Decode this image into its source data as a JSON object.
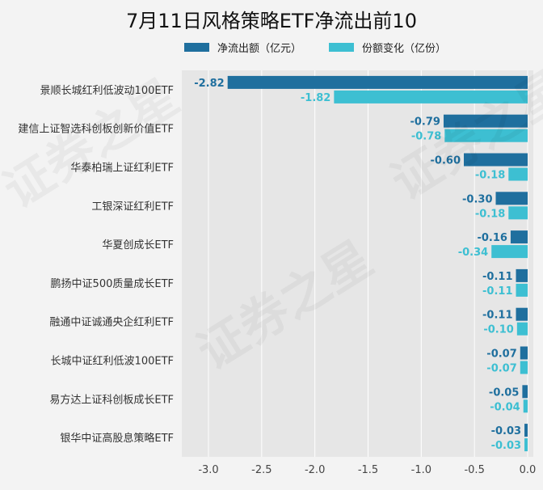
{
  "chart_data": {
    "type": "bar",
    "orientation": "horizontal",
    "title": "7月11日风格策略ETF净流出前10",
    "categories": [
      "景顺长城红利低波动100ETF",
      "建信上证智选科创板创新价值ETF",
      "华泰柏瑞上证红利ETF",
      "工银深证红利ETF",
      "华夏创成长ETF",
      "鹏扬中证500质量成长ETF",
      "融通中证诚通央企红利ETF",
      "长城中证红利低波100ETF",
      "易方达上证科创板成长ETF",
      "银华中证高股息策略ETF"
    ],
    "series": [
      {
        "name": "净流出额（亿元）",
        "color": "#1f6f9e",
        "values": [
          -2.82,
          -0.79,
          -0.6,
          -0.3,
          -0.16,
          -0.11,
          -0.11,
          -0.07,
          -0.05,
          -0.03
        ],
        "labels": [
          "-2.82",
          "-0.79",
          "-0.60",
          "-0.30",
          "-0.16",
          "-0.11",
          "-0.11",
          "-0.07",
          "-0.05",
          "-0.03"
        ]
      },
      {
        "name": "份额变化（亿份）",
        "color": "#3dbfd2",
        "values": [
          -1.82,
          -0.78,
          -0.18,
          -0.18,
          -0.34,
          -0.11,
          -0.1,
          -0.07,
          -0.04,
          -0.03
        ],
        "labels": [
          "-1.82",
          "-0.78",
          "-0.18",
          "-0.18",
          "-0.34",
          "-0.11",
          "-0.10",
          "-0.07",
          "-0.04",
          "-0.03"
        ]
      }
    ],
    "xlim": [
      -3.2,
      0
    ],
    "xticks": [
      -3.0,
      -2.5,
      -2.0,
      -1.5,
      -1.0,
      -0.5,
      0.0
    ],
    "xtick_labels": [
      "-3.0",
      "-2.5",
      "-2.0",
      "-1.5",
      "-1.0",
      "-0.5",
      "0.0"
    ],
    "grid": true,
    "legend_position": "top"
  },
  "watermark_text": "证券之星"
}
